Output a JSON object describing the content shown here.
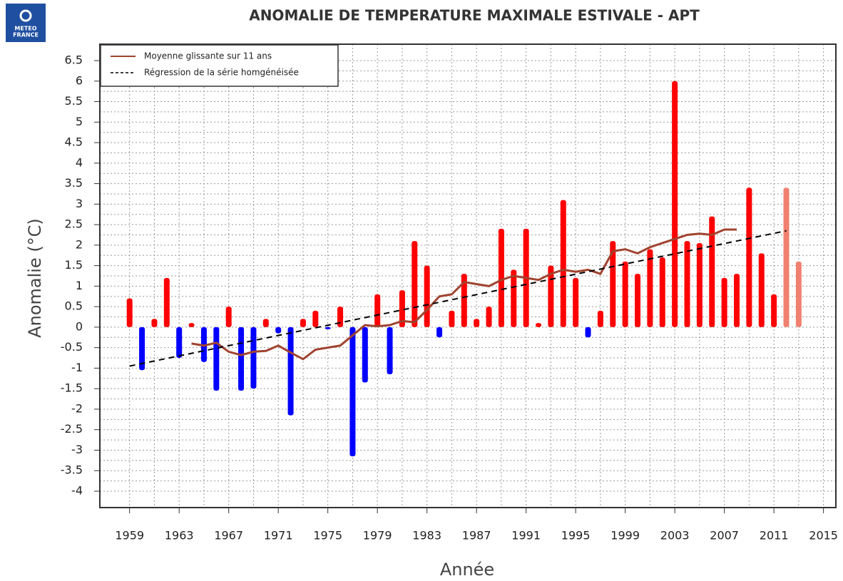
{
  "logo": [
    "METEO",
    "FRANCE"
  ],
  "chart_data": {
    "type": "bar",
    "title": "ANOMALIE DE TEMPERATURE MAXIMALE ESTIVALE - APT",
    "xlabel": "Année",
    "ylabel": "Anomalie (°C)",
    "x": [
      1959,
      1960,
      1961,
      1962,
      1963,
      1964,
      1965,
      1966,
      1967,
      1968,
      1969,
      1970,
      1971,
      1972,
      1973,
      1974,
      1975,
      1976,
      1977,
      1978,
      1979,
      1980,
      1981,
      1982,
      1983,
      1984,
      1985,
      1986,
      1987,
      1988,
      1989,
      1990,
      1991,
      1992,
      1993,
      1994,
      1995,
      1996,
      1997,
      1998,
      1999,
      2000,
      2001,
      2002,
      2003,
      2004,
      2005,
      2006,
      2007,
      2008,
      2009,
      2010,
      2011,
      2012,
      2013
    ],
    "values": [
      0.7,
      -1.05,
      0.2,
      1.2,
      -0.75,
      0.1,
      -0.85,
      -1.55,
      0.5,
      -1.55,
      -1.5,
      0.2,
      -0.15,
      -2.15,
      0.2,
      0.4,
      -0.05,
      0.5,
      -3.15,
      -1.35,
      0.8,
      -1.15,
      0.9,
      2.1,
      1.5,
      -0.25,
      0.4,
      1.3,
      0.2,
      0.5,
      2.4,
      1.4,
      2.4,
      0.1,
      1.5,
      3.1,
      1.2,
      -0.25,
      0.4,
      2.1,
      1.6,
      1.3,
      1.9,
      1.7,
      6.0,
      2.1,
      2.05,
      2.7,
      1.2,
      1.3,
      3.4,
      1.8,
      0.8,
      3.4,
      1.6
    ],
    "colors": [
      "#ff0000",
      "#0000ff",
      "#ff0000",
      "#ff0000",
      "#0000ff",
      "#ff0000",
      "#0000ff",
      "#0000ff",
      "#ff0000",
      "#0000ff",
      "#0000ff",
      "#ff0000",
      "#0000ff",
      "#0000ff",
      "#ff0000",
      "#ff0000",
      "#0000ff",
      "#ff0000",
      "#0000ff",
      "#0000ff",
      "#ff0000",
      "#0000ff",
      "#ff0000",
      "#ff0000",
      "#ff0000",
      "#0000ff",
      "#ff0000",
      "#ff0000",
      "#ff0000",
      "#ff0000",
      "#ff0000",
      "#ff0000",
      "#ff0000",
      "#ff0000",
      "#ff0000",
      "#ff0000",
      "#ff0000",
      "#0000ff",
      "#ff0000",
      "#ff0000",
      "#ff0000",
      "#ff0000",
      "#ff0000",
      "#ff0000",
      "#ff0000",
      "#ff0000",
      "#ff0000",
      "#ff0000",
      "#ff0000",
      "#ff0000",
      "#ff0000",
      "#ff0000",
      "#ff0000",
      "#f08070",
      "#f08070"
    ],
    "series": [
      {
        "name": "Moyenne glissante sur 11 ans",
        "color": "#a0432f",
        "style": "solid",
        "x": [
          1964,
          1965,
          1966,
          1967,
          1968,
          1969,
          1970,
          1971,
          1972,
          1973,
          1974,
          1975,
          1976,
          1977,
          1978,
          1979,
          1980,
          1981,
          1982,
          1983,
          1984,
          1985,
          1986,
          1987,
          1988,
          1989,
          1990,
          1991,
          1992,
          1993,
          1994,
          1995,
          1996,
          1997,
          1998,
          1999,
          2000,
          2001,
          2002,
          2003,
          2004,
          2005,
          2006,
          2007,
          2008
        ],
        "values": [
          -0.4,
          -0.45,
          -0.38,
          -0.6,
          -0.68,
          -0.6,
          -0.58,
          -0.45,
          -0.62,
          -0.78,
          -0.55,
          -0.5,
          -0.45,
          -0.2,
          0.05,
          0.02,
          0.05,
          0.15,
          0.12,
          0.42,
          0.75,
          0.8,
          1.1,
          1.05,
          1.0,
          1.15,
          1.25,
          1.2,
          1.15,
          1.3,
          1.4,
          1.35,
          1.4,
          1.3,
          1.85,
          1.9,
          1.8,
          1.95,
          2.05,
          2.15,
          2.25,
          2.28,
          2.25,
          2.38,
          2.38
        ]
      },
      {
        "name": "Régression de la série homgénéisée",
        "color": "#000000",
        "style": "dashed",
        "x": [
          1959,
          2012
        ],
        "values": [
          -0.95,
          2.35
        ]
      }
    ],
    "xlim": [
      1956.6,
      2016
    ],
    "ylim": [
      -4.4,
      6.9
    ],
    "xticks": [
      1959,
      1963,
      1967,
      1971,
      1975,
      1979,
      1983,
      1987,
      1991,
      1995,
      1999,
      2003,
      2007,
      2011,
      2015
    ],
    "yticks": [
      -4,
      -3.5,
      -3,
      -2.5,
      -2,
      -1.5,
      -1,
      -0.5,
      0,
      0.5,
      1,
      1.5,
      2,
      2.5,
      3,
      3.5,
      4,
      4.5,
      5,
      5.5,
      6,
      6.5
    ],
    "grid": true,
    "legend": "upper left"
  }
}
